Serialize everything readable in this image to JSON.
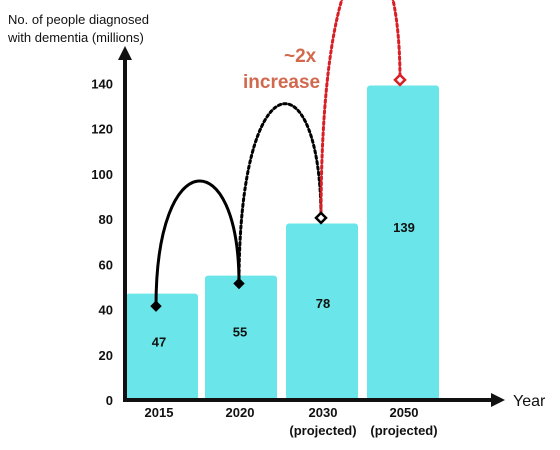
{
  "chart_data": {
    "type": "bar",
    "ylabel_lines": [
      "No. of people diagnosed",
      "with dementia (millions)"
    ],
    "xlabel": "Year",
    "categories": [
      {
        "line1": "2015",
        "line2": ""
      },
      {
        "line1": "2020",
        "line2": ""
      },
      {
        "line1": "2030",
        "line2": "(projected)"
      },
      {
        "line1": "2050",
        "line2": "(projected)"
      }
    ],
    "values": [
      47,
      55,
      78,
      139
    ],
    "data_labels": [
      "47",
      "55",
      "78",
      "139"
    ],
    "yticks": [
      "0",
      "20",
      "40",
      "60",
      "80",
      "100",
      "120",
      "140"
    ],
    "ylim": [
      0,
      150
    ],
    "grid": false,
    "annotation": {
      "lines": [
        "~2x",
        "increase"
      ]
    },
    "colors": {
      "bar": "#6ae6ea",
      "axis": "#111111",
      "arrow_solid": "#000000",
      "arrow_dotted": "#000000",
      "arrow_highlight": "#d91f26",
      "annotation_text": "#d2694f"
    }
  }
}
